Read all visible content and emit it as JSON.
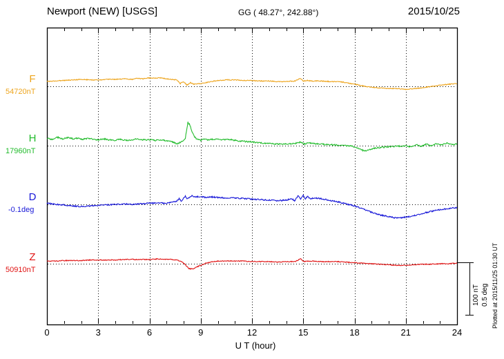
{
  "header": {
    "station": "Newport (NEW)  [USGS]",
    "coords": "GG ( 48.27°, 242.88°)",
    "date": "2015/10/25"
  },
  "scalebar": {
    "nt_label": "100 nT",
    "deg_label": "0.5 deg"
  },
  "plotted_at": "Plotted at 2015/11/25 01:30 UT",
  "chart_data": {
    "type": "line",
    "title": "Newport (NEW) [USGS] magnetogram 2015/10/25",
    "xlabel": "U T (hour)",
    "x_range": [
      0,
      24
    ],
    "x_ticks": [
      0,
      3,
      6,
      9,
      12,
      15,
      18,
      21,
      24
    ],
    "x_minor_tick_step": 1,
    "grid": "vertical-dotted",
    "scale": {
      "nT_per_div": 100,
      "deg_per_div": 0.5
    },
    "series": [
      {
        "id": "F",
        "label": "F",
        "baseline_label": "54720nT",
        "unit": "nT",
        "color": "#eda41c",
        "noise": 0.8,
        "anchors": [
          [
            0,
            9
          ],
          [
            0.5,
            10
          ],
          [
            1,
            11
          ],
          [
            1.5,
            12
          ],
          [
            2,
            13
          ],
          [
            2.5,
            12
          ],
          [
            3,
            12
          ],
          [
            3.5,
            13
          ],
          [
            4,
            13
          ],
          [
            4.5,
            14
          ],
          [
            5,
            13
          ],
          [
            5.3,
            15
          ],
          [
            5.6,
            14
          ],
          [
            6,
            16
          ],
          [
            6.3,
            15
          ],
          [
            6.6,
            16
          ],
          [
            7,
            14
          ],
          [
            7.3,
            13
          ],
          [
            7.6,
            12
          ],
          [
            7.8,
            5
          ],
          [
            8.0,
            9
          ],
          [
            8.2,
            2
          ],
          [
            8.4,
            7
          ],
          [
            8.6,
            4
          ],
          [
            8.8,
            5
          ],
          [
            9,
            5
          ],
          [
            9.3,
            7
          ],
          [
            9.6,
            9
          ],
          [
            10,
            11
          ],
          [
            10.5,
            12
          ],
          [
            11,
            12
          ],
          [
            11.5,
            11
          ],
          [
            12,
            11
          ],
          [
            12.5,
            10
          ],
          [
            13,
            10
          ],
          [
            13.5,
            9
          ],
          [
            14,
            9
          ],
          [
            14.5,
            10
          ],
          [
            14.85,
            15
          ],
          [
            15.0,
            10
          ],
          [
            15.2,
            11
          ],
          [
            15.5,
            10
          ],
          [
            16,
            10
          ],
          [
            16.5,
            9
          ],
          [
            17,
            9
          ],
          [
            17.3,
            8
          ],
          [
            17.6,
            6
          ],
          [
            18,
            4
          ],
          [
            18.3,
            2
          ],
          [
            18.6,
            0
          ],
          [
            19,
            -2
          ],
          [
            19.5,
            -3
          ],
          [
            20,
            -4
          ],
          [
            20.5,
            -4
          ],
          [
            21,
            -6
          ],
          [
            21.3,
            -5
          ],
          [
            21.6,
            -4
          ],
          [
            22,
            -3
          ],
          [
            22.3,
            -1
          ],
          [
            22.6,
            0
          ],
          [
            23,
            2
          ],
          [
            23.3,
            3
          ],
          [
            23.6,
            4
          ],
          [
            24,
            5
          ]
        ]
      },
      {
        "id": "H",
        "label": "H",
        "baseline_label": "17960nT",
        "unit": "nT",
        "color": "#21bb2b",
        "noise": 1.3,
        "anchors": [
          [
            0,
            14
          ],
          [
            0.3,
            12
          ],
          [
            0.6,
            16
          ],
          [
            0.9,
            13
          ],
          [
            1.2,
            15
          ],
          [
            1.5,
            13
          ],
          [
            1.8,
            14
          ],
          [
            2.1,
            12
          ],
          [
            2.4,
            14
          ],
          [
            2.7,
            12
          ],
          [
            3,
            11
          ],
          [
            3.3,
            13
          ],
          [
            3.6,
            11
          ],
          [
            4,
            10
          ],
          [
            4.3,
            12
          ],
          [
            4.6,
            10
          ],
          [
            5,
            11
          ],
          [
            5.3,
            13
          ],
          [
            5.6,
            11
          ],
          [
            6,
            11
          ],
          [
            6.3,
            10
          ],
          [
            6.6,
            11
          ],
          [
            7,
            9
          ],
          [
            7.3,
            8
          ],
          [
            7.6,
            3
          ],
          [
            7.8,
            6
          ],
          [
            8.0,
            9
          ],
          [
            8.1,
            14
          ],
          [
            8.25,
            44
          ],
          [
            8.35,
            40
          ],
          [
            8.5,
            26
          ],
          [
            8.65,
            16
          ],
          [
            8.8,
            12
          ],
          [
            9,
            10
          ],
          [
            9.2,
            13
          ],
          [
            9.4,
            11
          ],
          [
            9.7,
            12
          ],
          [
            10,
            12
          ],
          [
            10.3,
            11
          ],
          [
            10.6,
            12
          ],
          [
            11,
            10
          ],
          [
            11.5,
            8
          ],
          [
            12,
            7
          ],
          [
            12.5,
            5
          ],
          [
            13,
            4
          ],
          [
            13.5,
            3
          ],
          [
            14,
            3
          ],
          [
            14.5,
            4
          ],
          [
            14.85,
            7
          ],
          [
            15.05,
            3
          ],
          [
            15.3,
            5
          ],
          [
            15.6,
            4
          ],
          [
            16,
            3
          ],
          [
            16.5,
            2
          ],
          [
            17,
            1
          ],
          [
            17.5,
            0
          ],
          [
            18,
            -2
          ],
          [
            18.3,
            -6
          ],
          [
            18.5,
            -9
          ],
          [
            18.7,
            -10
          ],
          [
            19,
            -6
          ],
          [
            19.3,
            -4
          ],
          [
            19.6,
            -3
          ],
          [
            20,
            -2
          ],
          [
            20.5,
            -1
          ],
          [
            21,
            0
          ],
          [
            21.3,
            -3
          ],
          [
            21.6,
            2
          ],
          [
            21.9,
            -1
          ],
          [
            22.2,
            3
          ],
          [
            22.5,
            0
          ],
          [
            22.8,
            4
          ],
          [
            23.1,
            1
          ],
          [
            23.4,
            5
          ],
          [
            23.7,
            2
          ],
          [
            24,
            3
          ]
        ]
      },
      {
        "id": "D",
        "label": "D",
        "baseline_label": "-0.1deg",
        "unit": "deg",
        "color": "#1717d8",
        "noise": 0.006,
        "anchors": [
          [
            0,
            0.01
          ],
          [
            0.5,
            0
          ],
          [
            1,
            -0.005
          ],
          [
            1.5,
            -0.015
          ],
          [
            2,
            -0.02
          ],
          [
            2.5,
            -0.015
          ],
          [
            3,
            -0.01
          ],
          [
            3.5,
            -0.005
          ],
          [
            4,
            0
          ],
          [
            4.5,
            0.005
          ],
          [
            5,
            0
          ],
          [
            5.5,
            0.005
          ],
          [
            6,
            0.01
          ],
          [
            6.5,
            0.015
          ],
          [
            7,
            0.01
          ],
          [
            7.3,
            0.02
          ],
          [
            7.6,
            0.03
          ],
          [
            7.75,
            0.055
          ],
          [
            7.85,
            0.03
          ],
          [
            8.0,
            0.06
          ],
          [
            8.1,
            0.075
          ],
          [
            8.2,
            0.05
          ],
          [
            8.35,
            0.07
          ],
          [
            8.5,
            0.08
          ],
          [
            8.7,
            0.07
          ],
          [
            9,
            0.075
          ],
          [
            9.3,
            0.065
          ],
          [
            9.6,
            0.07
          ],
          [
            10,
            0.065
          ],
          [
            10.5,
            0.06
          ],
          [
            11,
            0.06
          ],
          [
            11.5,
            0.055
          ],
          [
            12,
            0.05
          ],
          [
            12.5,
            0.045
          ],
          [
            13,
            0.04
          ],
          [
            13.5,
            0.035
          ],
          [
            14,
            0.04
          ],
          [
            14.3,
            0.055
          ],
          [
            14.5,
            0.035
          ],
          [
            14.7,
            0.08
          ],
          [
            14.85,
            0.045
          ],
          [
            15.0,
            0.09
          ],
          [
            15.1,
            0.05
          ],
          [
            15.25,
            0.075
          ],
          [
            15.4,
            0.05
          ],
          [
            15.6,
            0.06
          ],
          [
            16,
            0.055
          ],
          [
            16.5,
            0.04
          ],
          [
            17,
            0.025
          ],
          [
            17.5,
            0.005
          ],
          [
            18,
            -0.015
          ],
          [
            18.5,
            -0.045
          ],
          [
            19,
            -0.075
          ],
          [
            19.5,
            -0.1
          ],
          [
            20,
            -0.115
          ],
          [
            20.5,
            -0.13
          ],
          [
            21,
            -0.12
          ],
          [
            21.5,
            -0.105
          ],
          [
            22,
            -0.085
          ],
          [
            22.5,
            -0.065
          ],
          [
            23,
            -0.05
          ],
          [
            23.5,
            -0.04
          ],
          [
            24,
            -0.03
          ]
        ]
      },
      {
        "id": "Z",
        "label": "Z",
        "baseline_label": "50910nT",
        "unit": "nT",
        "color": "#e01212",
        "noise": 0.8,
        "anchors": [
          [
            0,
            5
          ],
          [
            0.5,
            5
          ],
          [
            1,
            6
          ],
          [
            1.5,
            6
          ],
          [
            2,
            6
          ],
          [
            2.5,
            7
          ],
          [
            3,
            7
          ],
          [
            3.5,
            7
          ],
          [
            4,
            7
          ],
          [
            4.5,
            8
          ],
          [
            5,
            8
          ],
          [
            5.5,
            8
          ],
          [
            6,
            8
          ],
          [
            6.5,
            9
          ],
          [
            7,
            8
          ],
          [
            7.3,
            8
          ],
          [
            7.6,
            7
          ],
          [
            7.9,
            4
          ],
          [
            8.1,
            -2
          ],
          [
            8.3,
            -9
          ],
          [
            8.5,
            -10
          ],
          [
            8.7,
            -7
          ],
          [
            9,
            -3
          ],
          [
            9.3,
            1
          ],
          [
            9.6,
            3
          ],
          [
            10,
            5
          ],
          [
            10.5,
            5
          ],
          [
            11,
            5
          ],
          [
            11.5,
            5
          ],
          [
            12,
            4
          ],
          [
            12.5,
            4
          ],
          [
            13,
            4
          ],
          [
            13.5,
            3
          ],
          [
            14,
            4
          ],
          [
            14.5,
            4
          ],
          [
            14.85,
            9
          ],
          [
            15.05,
            4
          ],
          [
            15.3,
            5
          ],
          [
            15.6,
            5
          ],
          [
            16,
            4
          ],
          [
            16.5,
            4
          ],
          [
            17,
            4
          ],
          [
            17.5,
            3
          ],
          [
            18,
            2
          ],
          [
            18.5,
            1
          ],
          [
            19,
            0
          ],
          [
            19.5,
            -1
          ],
          [
            20,
            -2
          ],
          [
            20.5,
            -3
          ],
          [
            21,
            -3
          ],
          [
            21.5,
            -2
          ],
          [
            22,
            -1
          ],
          [
            22.5,
            -1
          ],
          [
            23,
            0
          ],
          [
            23.5,
            0
          ],
          [
            24,
            1
          ]
        ]
      }
    ]
  }
}
